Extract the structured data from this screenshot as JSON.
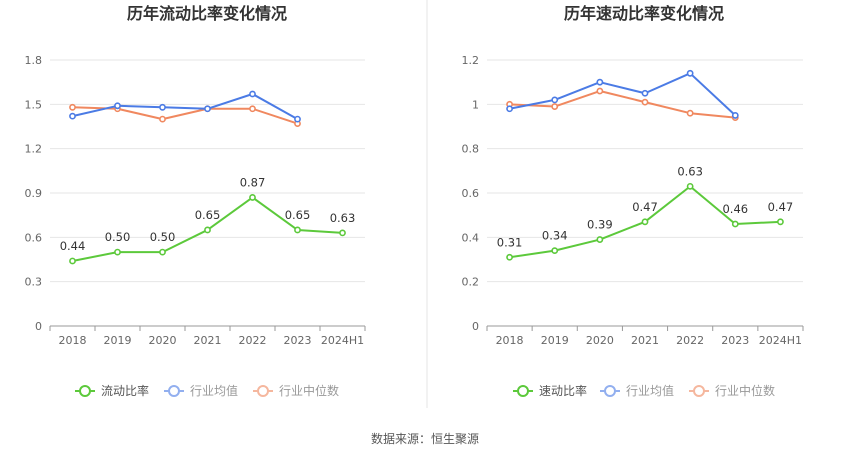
{
  "source": "数据来源：恒生聚源",
  "chart_data": [
    {
      "type": "line",
      "title": "历年流动比率变化情况",
      "categories": [
        "2018",
        "2019",
        "2020",
        "2021",
        "2022",
        "2023",
        "2024H1"
      ],
      "ylim": [
        0,
        1.8
      ],
      "yticks": [
        "0",
        "0.3",
        "0.6",
        "0.9",
        "1.2",
        "1.5",
        "1.8"
      ],
      "grid": true,
      "legend_position": "bottom",
      "series": [
        {
          "name": "流动比率",
          "color": "#5cc93b",
          "labeled": true,
          "values": [
            0.44,
            0.5,
            0.5,
            0.65,
            0.87,
            0.65,
            0.63
          ],
          "labels": [
            "0.44",
            "0.50",
            "0.50",
            "0.65",
            "0.87",
            "0.65",
            "0.63"
          ]
        },
        {
          "name": "行业均值",
          "color": "#4b7be5",
          "labeled": false,
          "values": [
            1.42,
            1.49,
            1.48,
            1.47,
            1.57,
            1.4,
            null
          ]
        },
        {
          "name": "行业中位数",
          "color": "#f0885f",
          "labeled": false,
          "values": [
            1.48,
            1.47,
            1.4,
            1.47,
            1.47,
            1.37,
            null
          ]
        }
      ]
    },
    {
      "type": "line",
      "title": "历年速动比率变化情况",
      "categories": [
        "2018",
        "2019",
        "2020",
        "2021",
        "2022",
        "2023",
        "2024H1"
      ],
      "ylim": [
        0,
        1.2
      ],
      "yticks": [
        "0",
        "0.2",
        "0.4",
        "0.6",
        "0.8",
        "1",
        "1.2"
      ],
      "grid": true,
      "legend_position": "bottom",
      "series": [
        {
          "name": "速动比率",
          "color": "#5cc93b",
          "labeled": true,
          "values": [
            0.31,
            0.34,
            0.39,
            0.47,
            0.63,
            0.46,
            0.47
          ],
          "labels": [
            "0.31",
            "0.34",
            "0.39",
            "0.47",
            "0.63",
            "0.46",
            "0.47"
          ]
        },
        {
          "name": "行业均值",
          "color": "#4b7be5",
          "labeled": false,
          "values": [
            0.98,
            1.02,
            1.1,
            1.05,
            1.14,
            0.95,
            null
          ]
        },
        {
          "name": "行业中位数",
          "color": "#f0885f",
          "labeled": false,
          "values": [
            1.0,
            0.99,
            1.06,
            1.01,
            0.96,
            0.94,
            null
          ]
        }
      ]
    }
  ]
}
